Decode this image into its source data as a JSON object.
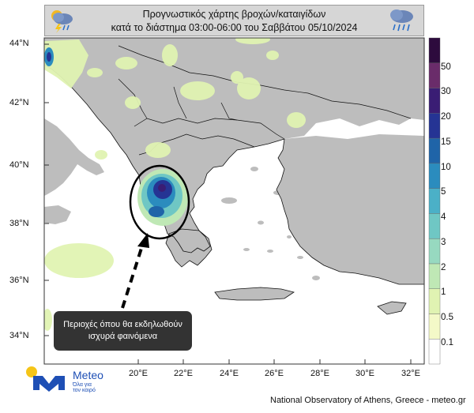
{
  "title": {
    "line1": "Προγνωστικός χάρτης βροχών/καταιγίδων",
    "line2": "κατά το διάστημα 03:00-06:00 του Σαββάτου 05/10/2024"
  },
  "icons": {
    "left": "storm-cloud-icon",
    "right": "rain-cloud-icon"
  },
  "lat_labels": [
    "44°N",
    "42°N",
    "40°N",
    "38°N",
    "36°N",
    "34°N"
  ],
  "lon_labels": [
    "20°E",
    "22°E",
    "24°E",
    "26°E",
    "28°E",
    "30°E",
    "32°E"
  ],
  "colorbar": {
    "levels": [
      "0.1",
      "0.5",
      "1",
      "2",
      "3",
      "4",
      "5",
      "10",
      "15",
      "20",
      "30",
      "50"
    ],
    "colors": [
      "#ffffff",
      "#f4f9c8",
      "#e0f3b2",
      "#bfe8b5",
      "#97d9c0",
      "#6fc7c4",
      "#4bb0c7",
      "#2b8cbe",
      "#1f64a8",
      "#253494",
      "#3a1d74",
      "#6a2c6a",
      "#2d0b3d"
    ]
  },
  "callout": {
    "line1": "Περιοχές όπου θα εκδηλωθούν",
    "line2": "ισχυρά φαινόμενα"
  },
  "logo": {
    "name": "Meteo",
    "tagline1": "Όλα για",
    "tagline2": "τον καιρό",
    "accent": "#1e4fb5"
  },
  "footer": "National Observatory of Athens, Greece - meteo.gr",
  "colors": {
    "sea": "#ffffff",
    "land": "#bdbdbd",
    "border": "#111111",
    "highlight": "#000000"
  }
}
